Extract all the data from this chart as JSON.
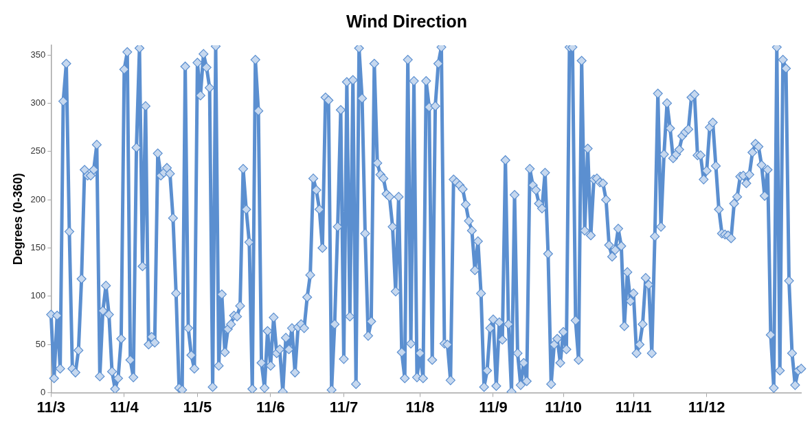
{
  "chart_data": {
    "type": "line",
    "title": "Wind Direction",
    "ylabel": "Degrees (0-360)",
    "categories": [
      "11/3",
      null,
      null,
      null,
      null,
      null,
      null,
      null,
      null,
      null,
      null,
      null,
      null,
      null,
      null,
      null,
      null,
      null,
      null,
      null,
      null,
      null,
      null,
      null,
      "11/4",
      null,
      null,
      null,
      null,
      null,
      null,
      null,
      null,
      null,
      null,
      null,
      null,
      null,
      null,
      null,
      null,
      null,
      null,
      null,
      null,
      null,
      null,
      null,
      "11/5",
      null,
      null,
      null,
      null,
      null,
      null,
      null,
      null,
      null,
      null,
      null,
      null,
      null,
      null,
      null,
      null,
      null,
      null,
      null,
      null,
      null,
      null,
      null,
      "11/6",
      null,
      null,
      null,
      null,
      null,
      null,
      null,
      null,
      null,
      null,
      null,
      null,
      null,
      null,
      null,
      null,
      null,
      null,
      null,
      null,
      null,
      null,
      null,
      "11/7",
      null,
      null,
      null,
      null,
      null,
      null,
      null,
      null,
      null,
      null,
      null,
      null,
      null,
      null,
      null,
      null,
      null,
      null,
      null,
      null,
      null,
      null,
      null,
      null,
      "11/8",
      null,
      null,
      null,
      null,
      null,
      null,
      null,
      null,
      null,
      null,
      null,
      null,
      null,
      null,
      null,
      null,
      null,
      null,
      null,
      null,
      null,
      null,
      null,
      "11/9",
      null,
      null,
      null,
      null,
      null,
      null,
      null,
      null,
      null,
      null,
      null,
      null,
      null,
      null,
      null,
      null,
      null,
      null,
      null,
      null,
      null,
      null,
      "11/10",
      null,
      null,
      null,
      null,
      null,
      null,
      null,
      null,
      null,
      null,
      null,
      null,
      null,
      null,
      null,
      null,
      null,
      null,
      null,
      null,
      null,
      null,
      "11/11",
      null,
      null,
      null,
      null,
      null,
      null,
      null,
      null,
      null,
      null,
      null,
      null,
      null,
      null,
      null,
      null,
      null,
      null,
      null,
      null,
      null,
      null,
      null,
      "11/12",
      null,
      null,
      null,
      null,
      null,
      null,
      null,
      null,
      null,
      null,
      null,
      null,
      null,
      null,
      null,
      null,
      null,
      null,
      null,
      null,
      null,
      null,
      null,
      null,
      null,
      null,
      null,
      null,
      null,
      null,
      null
    ],
    "ylim": [
      0,
      360
    ],
    "yticks": [
      0,
      50,
      100,
      150,
      200,
      250,
      300,
      350
    ],
    "grid": false,
    "legend": false,
    "marker": "diamond",
    "line_style": "solid",
    "series": [
      {
        "color": "#5b8fd0",
        "values": [
          81,
          15,
          80,
          25,
          302,
          341,
          167,
          25,
          21,
          44,
          118,
          231,
          225,
          225,
          231,
          257,
          17,
          85,
          111,
          81,
          22,
          4,
          15,
          56,
          335,
          353,
          34,
          16,
          254,
          357,
          131,
          297,
          50,
          58,
          52,
          248,
          225,
          228,
          233,
          227,
          181,
          103,
          5,
          3,
          338,
          67,
          39,
          25,
          342,
          308,
          351,
          337,
          316,
          6,
          359,
          28,
          102,
          42,
          66,
          71,
          80,
          79,
          90,
          232,
          190,
          156,
          4,
          345,
          292,
          31,
          5,
          64,
          28,
          78,
          41,
          45,
          1,
          57,
          45,
          67,
          21,
          68,
          71,
          67,
          99,
          122,
          222,
          210,
          190,
          150,
          306,
          303,
          3,
          71,
          172,
          293,
          35,
          322,
          79,
          324,
          9,
          357,
          305,
          165,
          59,
          74,
          341,
          238,
          226,
          222,
          206,
          203,
          172,
          105,
          203,
          42,
          15,
          345,
          51,
          323,
          16,
          41,
          15,
          323,
          296,
          34,
          297,
          341,
          358,
          51,
          50,
          13,
          221,
          218,
          215,
          211,
          195,
          178,
          168,
          127,
          157,
          103,
          6,
          23,
          67,
          76,
          7,
          73,
          55,
          241,
          71,
          1,
          205,
          41,
          8,
          31,
          12,
          232,
          215,
          210,
          196,
          191,
          228,
          144,
          9,
          50,
          56,
          31,
          63,
          45,
          358,
          358,
          75,
          34,
          344,
          168,
          253,
          163,
          221,
          222,
          218,
          217,
          200,
          153,
          141,
          148,
          170,
          152,
          69,
          125,
          95,
          103,
          41,
          50,
          71,
          119,
          112,
          41,
          162,
          310,
          172,
          247,
          300,
          274,
          243,
          247,
          252,
          266,
          270,
          273,
          306,
          309,
          246,
          246,
          221,
          230,
          275,
          280,
          235,
          190,
          165,
          164,
          163,
          160,
          196,
          203,
          224,
          225,
          217,
          226,
          249,
          258,
          255,
          236,
          204,
          231,
          60,
          5,
          358,
          23,
          345,
          336,
          116,
          41,
          8,
          23,
          25
        ]
      }
    ]
  }
}
